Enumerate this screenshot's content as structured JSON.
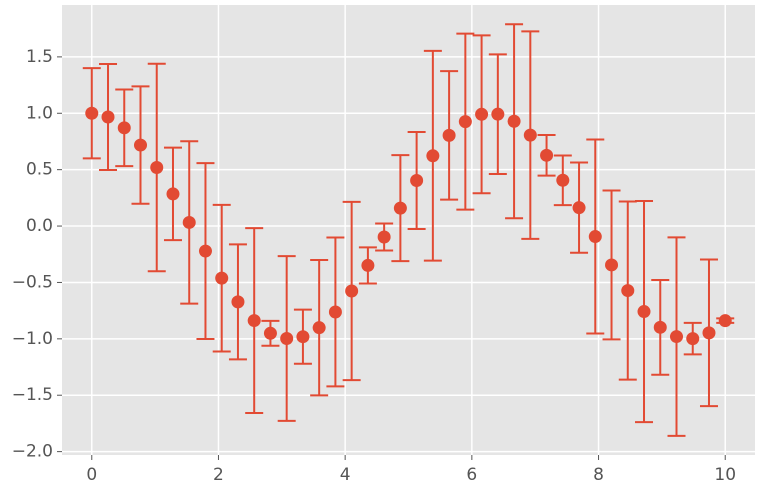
{
  "chart_data": {
    "type": "errorbar",
    "x": [
      0,
      0.2564,
      0.5128,
      0.7692,
      1.0256,
      1.2821,
      1.5385,
      1.7949,
      2.0513,
      2.3077,
      2.5641,
      2.8205,
      3.0769,
      3.3333,
      3.5897,
      3.8462,
      4.1026,
      4.359,
      4.6154,
      4.8718,
      5.1282,
      5.3846,
      5.641,
      5.8974,
      6.1538,
      6.4103,
      6.6667,
      6.9231,
      7.1795,
      7.4359,
      7.6923,
      7.9487,
      8.2051,
      8.4615,
      8.7179,
      8.9744,
      9.2308,
      9.4872,
      9.7436,
      10
    ],
    "values": [
      1.0,
      0.967,
      0.871,
      0.718,
      0.519,
      0.285,
      0.032,
      -0.222,
      -0.462,
      -0.672,
      -0.838,
      -0.951,
      -0.997,
      -0.981,
      -0.901,
      -0.762,
      -0.576,
      -0.349,
      -0.097,
      0.159,
      0.404,
      0.623,
      0.804,
      0.926,
      0.991,
      0.992,
      0.929,
      0.806,
      0.627,
      0.406,
      0.163,
      -0.093,
      -0.345,
      -0.572,
      -0.758,
      -0.898,
      -0.98,
      -0.998,
      -0.947,
      -0.839
    ],
    "errors": [
      0.4,
      0.47,
      0.34,
      0.52,
      0.92,
      0.41,
      0.72,
      0.78,
      0.65,
      0.51,
      0.82,
      0.11,
      0.73,
      0.24,
      0.6,
      0.66,
      0.79,
      0.16,
      0.12,
      0.47,
      0.43,
      0.93,
      0.57,
      0.78,
      0.7,
      0.53,
      0.86,
      0.92,
      0.18,
      0.22,
      0.4,
      0.86,
      0.66,
      0.79,
      0.98,
      0.42,
      0.88,
      0.14,
      0.65,
      0.02
    ],
    "color": "#E24A33",
    "xlim": [
      -0.47,
      10.47
    ],
    "ylim": [
      -2.03,
      1.96
    ],
    "xticks": [
      0,
      2,
      4,
      6,
      8,
      10
    ],
    "yticks": [
      {
        "value": -2.0,
        "label": "−2.0"
      },
      {
        "value": -1.5,
        "label": "−1.5"
      },
      {
        "value": -1.0,
        "label": "−1.0"
      },
      {
        "value": -0.5,
        "label": "−0.5"
      },
      {
        "value": 0.0,
        "label": "0.0"
      },
      {
        "value": 0.5,
        "label": "0.5"
      },
      {
        "value": 1.0,
        "label": "1.0"
      },
      {
        "value": 1.5,
        "label": "1.5"
      }
    ],
    "grid": true
  }
}
